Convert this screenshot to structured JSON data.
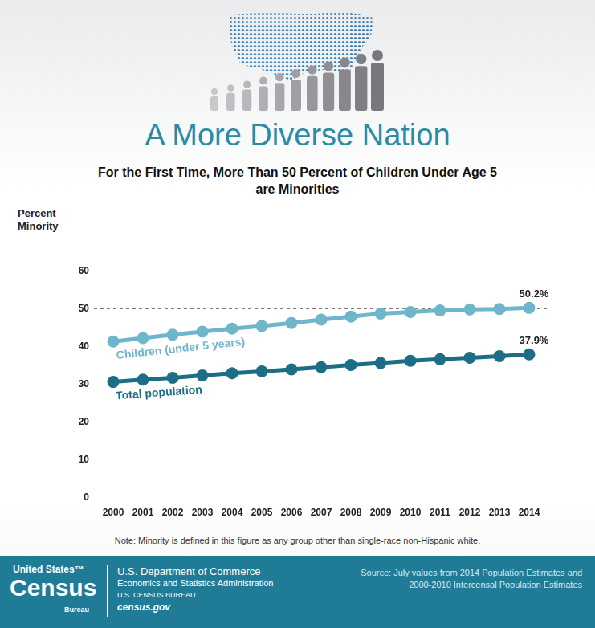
{
  "chart_data": {
    "type": "line",
    "title": "A More Diverse Nation",
    "subtitle": "For the First Time, More Than 50 Percent of Children Under Age 5 are Minorities",
    "y_label": "Percent Minority",
    "note": "Note: Minority is defined in this figure as any group other than single-race non-Hispanic white.",
    "categories": [
      "2000",
      "2001",
      "2002",
      "2003",
      "2004",
      "2005",
      "2006",
      "2007",
      "2008",
      "2009",
      "2010",
      "2011",
      "2012",
      "2013",
      "2014"
    ],
    "series": [
      {
        "name": "Children (under 5 years)",
        "color": "#6fb6cb",
        "values": [
          41.3,
          42.2,
          43.1,
          43.9,
          44.7,
          45.4,
          46.2,
          47.1,
          47.9,
          48.7,
          49.1,
          49.5,
          49.8,
          49.9,
          50.2
        ],
        "value_labels": [
          null,
          null,
          null,
          null,
          null,
          null,
          null,
          null,
          null,
          null,
          null,
          null,
          null,
          null,
          "50.2%"
        ]
      },
      {
        "name": "Total population",
        "color": "#1c6e86",
        "values": [
          30.6,
          31.2,
          31.7,
          32.3,
          32.9,
          33.4,
          33.9,
          34.5,
          35.1,
          35.6,
          36.2,
          36.6,
          37.0,
          37.4,
          37.9
        ],
        "value_labels": [
          null,
          null,
          null,
          null,
          null,
          null,
          null,
          null,
          null,
          null,
          null,
          null,
          null,
          null,
          "37.9%"
        ]
      }
    ],
    "ylim": [
      0,
      60
    ],
    "yticks": [
      0,
      10,
      20,
      30,
      40,
      50,
      60
    ],
    "grid": false,
    "marker": "circle",
    "reference_lines": [
      {
        "y": 50,
        "line_style": "dashed"
      }
    ]
  },
  "footer": {
    "logo": {
      "top": "United States™",
      "main": "Census",
      "bottom": "Bureau"
    },
    "agency": [
      "U.S. Department of Commerce",
      "Economics and Statistics Administration",
      "U.S. CENSUS BUREAU",
      "census.gov"
    ],
    "source": "Source: July values from 2014 Population Estimates and 2000-2010 Intercensal Population Estimates"
  }
}
